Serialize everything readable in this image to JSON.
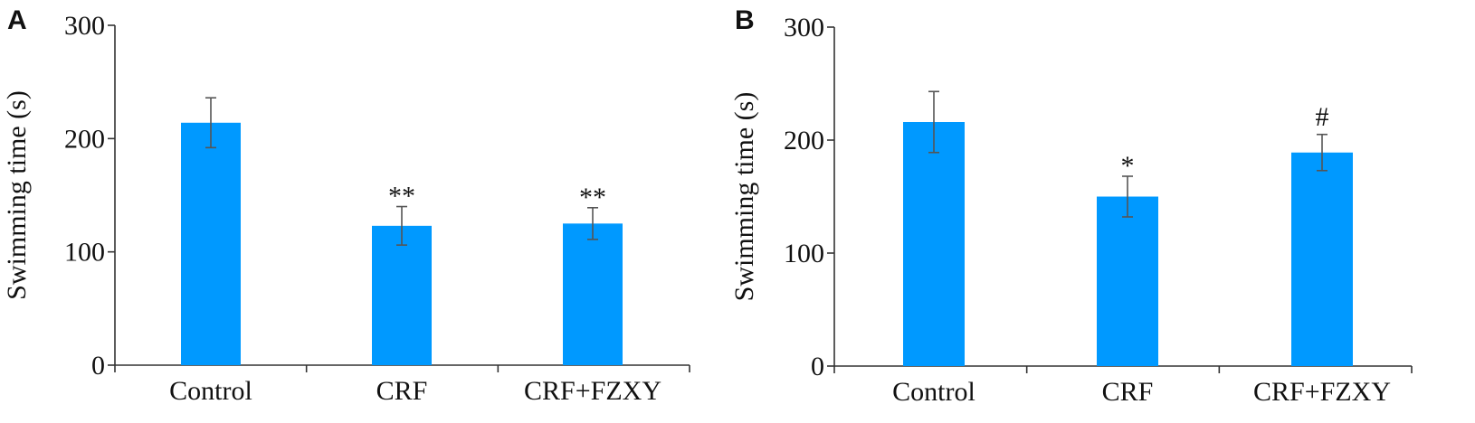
{
  "chart_data": [
    {
      "type": "bar",
      "panel": "A",
      "ylabel": "Swimming time (s)",
      "xlabel": "",
      "ylim": [
        0,
        300
      ],
      "yticks": [
        "0",
        "100",
        "200",
        "300"
      ],
      "categories": [
        "Control",
        "CRF",
        "CRF+FZXY"
      ],
      "values": [
        214,
        123,
        125
      ],
      "errors": [
        22,
        17,
        14
      ],
      "annotations": [
        "",
        "**",
        "**"
      ],
      "bar_color": "#0099ff"
    },
    {
      "type": "bar",
      "panel": "B",
      "ylabel": "Swimming time (s)",
      "xlabel": "",
      "ylim": [
        0,
        300
      ],
      "yticks": [
        "0",
        "100",
        "200",
        "300"
      ],
      "categories": [
        "Control",
        "CRF",
        "CRF+FZXY"
      ],
      "values": [
        216,
        150,
        189
      ],
      "errors": [
        27,
        18,
        16
      ],
      "annotations": [
        "",
        "*",
        "#"
      ],
      "bar_color": "#0099ff"
    }
  ]
}
